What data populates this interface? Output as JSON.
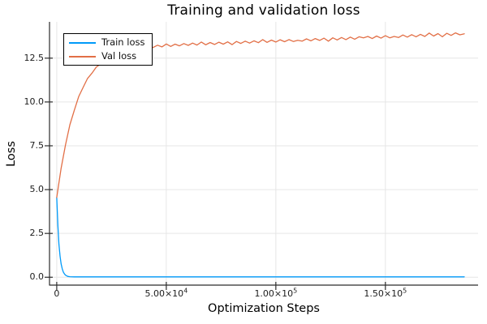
{
  "chart_data": {
    "type": "line",
    "title": "Training and validation loss",
    "xlabel": "Optimization Steps",
    "ylabel": "Loss",
    "xlim": [
      -3300,
      192300
    ],
    "ylim": [
      -0.45,
      14.57
    ],
    "grid": true,
    "legend_position": "top-left",
    "axis_color": "#2c2c2c",
    "grid_color": "#e6e6e6",
    "x_ticks": {
      "values": [
        0,
        50000,
        100000,
        150000
      ],
      "labels": [
        {
          "mantissa": "0",
          "exp": ""
        },
        {
          "mantissa": "5.00×10",
          "exp": "4"
        },
        {
          "mantissa": "1.00×10",
          "exp": "5"
        },
        {
          "mantissa": "1.50×10",
          "exp": "5"
        }
      ]
    },
    "y_ticks": {
      "values": [
        0,
        2.5,
        5,
        7.5,
        10,
        12.5
      ],
      "labels": [
        "0.0",
        "2.5",
        "5.0",
        "7.5",
        "10.0",
        "12.5"
      ]
    },
    "series": [
      {
        "name": "Train loss",
        "color": "#009af9",
        "x": [
          0,
          500,
          1000,
          1500,
          2000,
          2500,
          3000,
          3500,
          4000,
          5000,
          6000,
          8000,
          10000,
          20000,
          40000,
          80000,
          120000,
          160000,
          186000
        ],
        "y": [
          4.55,
          2.95,
          1.88,
          1.2,
          0.76,
          0.48,
          0.3,
          0.19,
          0.12,
          0.05,
          0.03,
          0.02,
          0.02,
          0.02,
          0.02,
          0.02,
          0.02,
          0.02,
          0.02
        ]
      },
      {
        "name": "Val loss",
        "color": "#e26f46",
        "x0": 0,
        "dx": 2000,
        "y": [
          4.55,
          6.22,
          7.55,
          8.7,
          9.52,
          10.3,
          10.82,
          11.33,
          11.63,
          11.98,
          12.17,
          12.43,
          12.51,
          12.72,
          12.75,
          12.91,
          12.89,
          13.03,
          12.98,
          13.12,
          13.02,
          13.18,
          13.11,
          13.24,
          13.14,
          13.31,
          13.17,
          13.3,
          13.2,
          13.33,
          13.23,
          13.36,
          13.25,
          13.42,
          13.26,
          13.39,
          13.28,
          13.41,
          13.3,
          13.43,
          13.27,
          13.45,
          13.34,
          13.47,
          13.36,
          13.49,
          13.38,
          13.56,
          13.4,
          13.53,
          13.42,
          13.55,
          13.44,
          13.56,
          13.45,
          13.52,
          13.47,
          13.6,
          13.49,
          13.62,
          13.51,
          13.64,
          13.47,
          13.66,
          13.54,
          13.68,
          13.56,
          13.7,
          13.58,
          13.72,
          13.66,
          13.74,
          13.62,
          13.76,
          13.64,
          13.78,
          13.66,
          13.74,
          13.68,
          13.82,
          13.7,
          13.84,
          13.72,
          13.86,
          13.74,
          13.93,
          13.76,
          13.9,
          13.72,
          13.92,
          13.8,
          13.94,
          13.83,
          13.89
        ]
      }
    ]
  }
}
